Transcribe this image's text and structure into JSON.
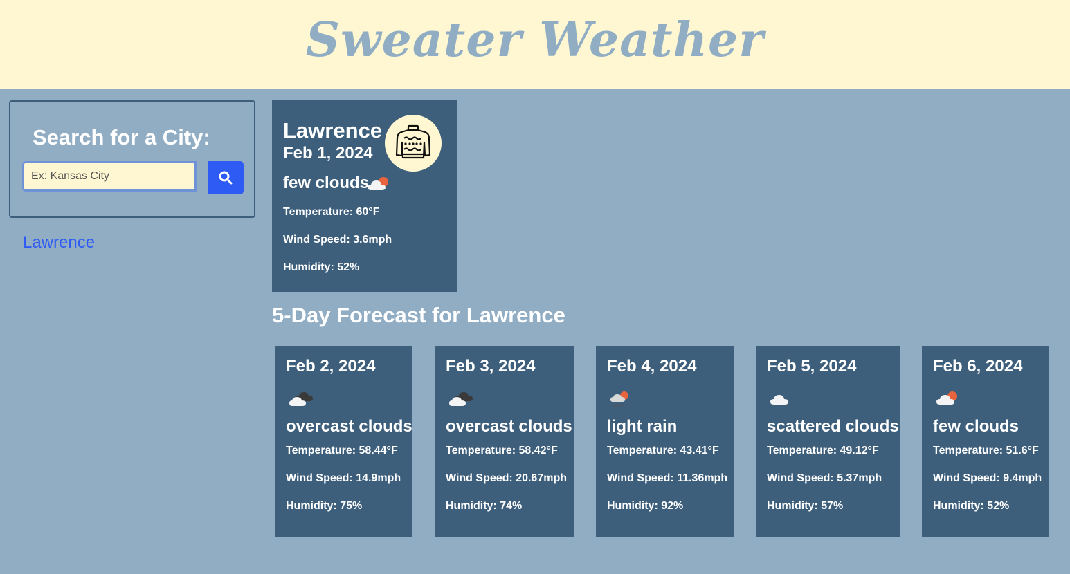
{
  "header": {
    "title": "Sweater Weather"
  },
  "search": {
    "title": "Search for a City:",
    "placeholder": "Ex: Kansas City",
    "button_icon": "search-icon"
  },
  "history": [
    {
      "label": "Lawrence"
    }
  ],
  "current": {
    "city": "Lawrence",
    "date": "Feb 1, 2024",
    "badge_icon": "sweater-icon",
    "description": "few clouds",
    "icon": "few-clouds-icon",
    "temperature": "Temperature: 60°F",
    "wind": "Wind Speed: 3.6mph",
    "humidity": "Humidity: 52%"
  },
  "forecast": {
    "title": "5-Day Forecast for Lawrence",
    "days": [
      {
        "date": "Feb 2, 2024",
        "icon": "overcast-clouds-icon",
        "description": "overcast clouds",
        "temperature": "Temperature: 58.44°F",
        "wind": "Wind Speed: 14.9mph",
        "humidity": "Humidity: 75%"
      },
      {
        "date": "Feb 3, 2024",
        "icon": "overcast-clouds-icon",
        "description": "overcast clouds",
        "temperature": "Temperature: 58.42°F",
        "wind": "Wind Speed: 20.67mph",
        "humidity": "Humidity: 74%"
      },
      {
        "date": "Feb 4, 2024",
        "icon": "light-rain-icon",
        "description": "light rain",
        "temperature": "Temperature: 43.41°F",
        "wind": "Wind Speed: 11.36mph",
        "humidity": "Humidity: 92%"
      },
      {
        "date": "Feb 5, 2024",
        "icon": "scattered-clouds-icon",
        "description": "scattered clouds",
        "temperature": "Temperature: 49.12°F",
        "wind": "Wind Speed: 5.37mph",
        "humidity": "Humidity: 57%"
      },
      {
        "date": "Feb 6, 2024",
        "icon": "few-clouds-icon",
        "description": "few clouds",
        "temperature": "Temperature: 51.6°F",
        "wind": "Wind Speed: 9.4mph",
        "humidity": "Humidity: 52%"
      }
    ]
  },
  "colors": {
    "background": "#91adc4",
    "header_bg": "#fef7d1",
    "card_bg": "#3d5f7c",
    "accent": "#2f5bf5"
  }
}
